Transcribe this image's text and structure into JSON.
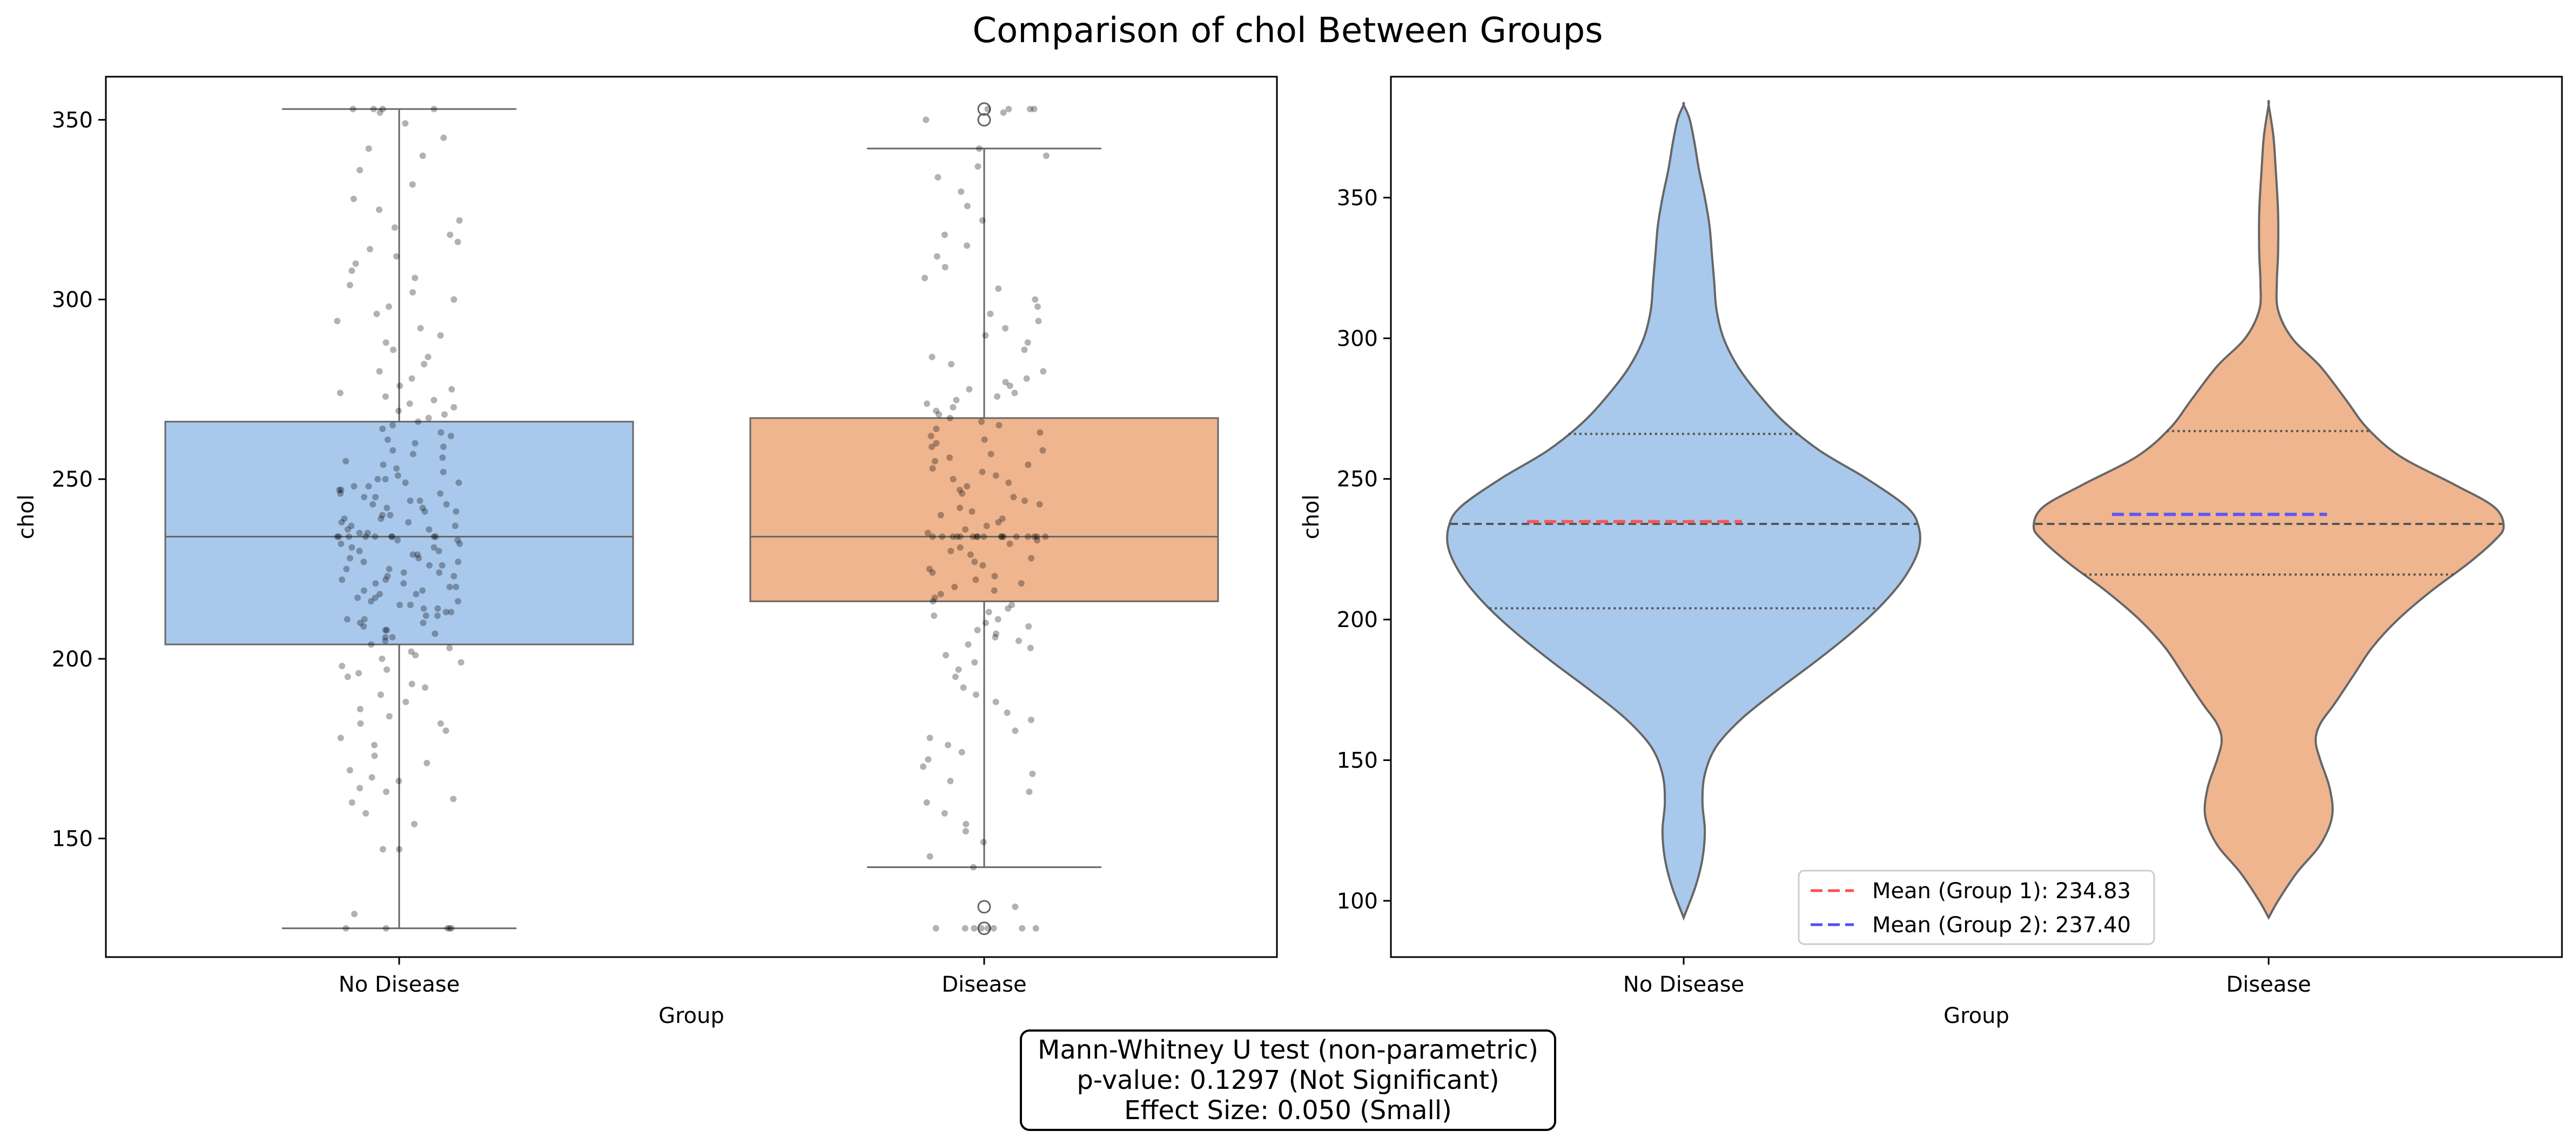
{
  "figure_title": "Comparison of chol Between Groups",
  "colors": {
    "no_disease": "#a9c9ec",
    "disease": "#efb58f",
    "edge": "#666666",
    "jitter": "#000000",
    "mean1": "#ff4d4d",
    "mean2": "#4d4dff"
  },
  "chart_data": [
    {
      "type": "box",
      "title": "",
      "xlabel": "Group",
      "ylabel": "chol",
      "categories": [
        "No Disease",
        "Disease"
      ],
      "ylim": [
        117,
        362
      ],
      "yticks": [
        150,
        200,
        250,
        300,
        350
      ],
      "grid": false,
      "boxes": [
        {
          "group": "No Disease",
          "whisker_low": 125,
          "q1": 204,
          "median": 234,
          "q3": 266,
          "whisker_high": 353,
          "outliers": []
        },
        {
          "group": "Disease",
          "whisker_low": 142,
          "q1": 216,
          "median": 234,
          "q3": 267,
          "whisker_high": 342,
          "outliers": [
            131,
            125,
            350,
            353
          ]
        }
      ],
      "jitter_points": [
        {
          "group": "No Disease",
          "values": [
            125,
            125,
            125,
            125,
            125,
            129,
            147,
            147,
            154,
            157,
            160,
            161,
            163,
            164,
            166,
            167,
            169,
            171,
            173,
            176,
            178,
            180,
            182,
            182,
            184,
            186,
            188,
            190,
            192,
            193,
            195,
            196,
            197,
            198,
            199,
            200,
            201,
            202,
            203,
            204,
            205,
            206,
            206,
            207,
            208,
            208,
            209,
            210,
            210,
            211,
            211,
            212,
            212,
            213,
            213,
            214,
            214,
            215,
            215,
            216,
            216,
            217,
            217,
            218,
            218,
            219,
            219,
            220,
            220,
            221,
            221,
            222,
            222,
            223,
            223,
            224,
            224,
            225,
            225,
            226,
            226,
            227,
            227,
            228,
            228,
            229,
            229,
            230,
            230,
            231,
            231,
            232,
            232,
            233,
            233,
            234,
            234,
            234,
            234,
            234,
            234,
            234,
            234,
            234,
            235,
            235,
            236,
            236,
            237,
            237,
            238,
            238,
            239,
            239,
            240,
            240,
            241,
            241,
            242,
            242,
            243,
            243,
            244,
            244,
            245,
            245,
            246,
            246,
            247,
            247,
            248,
            248,
            249,
            249,
            250,
            250,
            251,
            252,
            253,
            254,
            255,
            256,
            257,
            258,
            259,
            260,
            261,
            262,
            263,
            264,
            265,
            266,
            267,
            268,
            269,
            270,
            271,
            272,
            273,
            274,
            275,
            276,
            278,
            280,
            282,
            284,
            286,
            288,
            290,
            292,
            294,
            296,
            298,
            300,
            302,
            304,
            306,
            308,
            310,
            312,
            314,
            316,
            318,
            320,
            322,
            325,
            328,
            332,
            336,
            340,
            342,
            345,
            349,
            352,
            353,
            353,
            353,
            353
          ]
        },
        {
          "group": "Disease",
          "values": [
            125,
            125,
            125,
            125,
            125,
            125,
            125,
            125,
            131,
            142,
            145,
            149,
            152,
            154,
            157,
            160,
            163,
            166,
            168,
            170,
            172,
            174,
            176,
            178,
            180,
            183,
            185,
            188,
            190,
            192,
            195,
            197,
            199,
            201,
            203,
            204,
            205,
            206,
            207,
            208,
            209,
            210,
            211,
            212,
            213,
            214,
            215,
            216,
            217,
            218,
            219,
            220,
            221,
            222,
            223,
            224,
            225,
            226,
            227,
            228,
            229,
            230,
            231,
            232,
            233,
            234,
            234,
            234,
            234,
            234,
            234,
            234,
            234,
            234,
            234,
            234,
            234,
            234,
            234,
            234,
            234,
            234,
            235,
            236,
            237,
            238,
            239,
            240,
            241,
            242,
            243,
            244,
            245,
            246,
            247,
            248,
            249,
            250,
            251,
            252,
            253,
            254,
            255,
            256,
            257,
            258,
            259,
            260,
            261,
            262,
            263,
            264,
            265,
            266,
            267,
            268,
            269,
            270,
            271,
            272,
            273,
            274,
            275,
            276,
            277,
            278,
            280,
            282,
            284,
            286,
            288,
            290,
            292,
            294,
            296,
            298,
            300,
            303,
            306,
            309,
            312,
            315,
            318,
            322,
            326,
            330,
            334,
            337,
            340,
            342,
            350,
            352,
            353,
            353,
            353,
            353
          ]
        }
      ]
    },
    {
      "type": "violin",
      "title": "",
      "xlabel": "Group",
      "ylabel": "chol",
      "categories": [
        "No Disease",
        "Disease"
      ],
      "ylim": [
        80,
        393
      ],
      "yticks": [
        100,
        150,
        200,
        250,
        300,
        350
      ],
      "grid": false,
      "violins": [
        {
          "group": "No Disease",
          "quartiles": [
            204,
            234,
            266
          ],
          "mean": 234.83,
          "extent": [
            94,
            383
          ],
          "density_profile": [
            [
              94,
              0
            ],
            [
              105,
              0.05
            ],
            [
              115,
              0.08
            ],
            [
              125,
              0.09
            ],
            [
              135,
              0.08
            ],
            [
              145,
              0.09
            ],
            [
              155,
              0.14
            ],
            [
              165,
              0.25
            ],
            [
              175,
              0.4
            ],
            [
              185,
              0.56
            ],
            [
              195,
              0.71
            ],
            [
              205,
              0.84
            ],
            [
              215,
              0.94
            ],
            [
              225,
              1.0
            ],
            [
              233,
              1.0
            ],
            [
              240,
              0.95
            ],
            [
              250,
              0.78
            ],
            [
              260,
              0.58
            ],
            [
              270,
              0.43
            ],
            [
              280,
              0.32
            ],
            [
              290,
              0.23
            ],
            [
              300,
              0.17
            ],
            [
              310,
              0.14
            ],
            [
              320,
              0.13
            ],
            [
              330,
              0.12
            ],
            [
              340,
              0.11
            ],
            [
              350,
              0.09
            ],
            [
              360,
              0.065
            ],
            [
              370,
              0.045
            ],
            [
              378,
              0.025
            ],
            [
              383,
              0
            ]
          ]
        },
        {
          "group": "Disease",
          "quartiles": [
            216,
            234,
            267
          ],
          "mean": 237.4,
          "extent": [
            94,
            383
          ],
          "density_profile": [
            [
              94,
              0
            ],
            [
              100,
              0.04
            ],
            [
              110,
              0.12
            ],
            [
              120,
              0.22
            ],
            [
              130,
              0.27
            ],
            [
              140,
              0.26
            ],
            [
              150,
              0.22
            ],
            [
              157,
              0.2
            ],
            [
              163,
              0.22
            ],
            [
              170,
              0.28
            ],
            [
              180,
              0.36
            ],
            [
              190,
              0.44
            ],
            [
              200,
              0.55
            ],
            [
              210,
              0.69
            ],
            [
              220,
              0.85
            ],
            [
              228,
              0.96
            ],
            [
              233,
              1.0
            ],
            [
              240,
              0.96
            ],
            [
              248,
              0.79
            ],
            [
              258,
              0.56
            ],
            [
              268,
              0.42
            ],
            [
              278,
              0.33
            ],
            [
              290,
              0.22
            ],
            [
              300,
              0.1
            ],
            [
              310,
              0.04
            ],
            [
              320,
              0.035
            ],
            [
              330,
              0.04
            ],
            [
              345,
              0.04
            ],
            [
              360,
              0.03
            ],
            [
              372,
              0.02
            ],
            [
              383,
              0
            ]
          ]
        }
      ],
      "legend": {
        "position": "lower-center",
        "entries": [
          {
            "label": "Mean (Group 1): 234.83",
            "color": "#ff4d4d",
            "style": "dashed"
          },
          {
            "label": "Mean (Group 2): 237.40",
            "color": "#4d4dff",
            "style": "dashed"
          }
        ]
      }
    }
  ],
  "stats_box": {
    "line1": "Mann-Whitney U test (non-parametric)",
    "line2": "p-value: 0.1297 (Not Significant)",
    "line3": "Effect Size: 0.050 (Small)"
  }
}
